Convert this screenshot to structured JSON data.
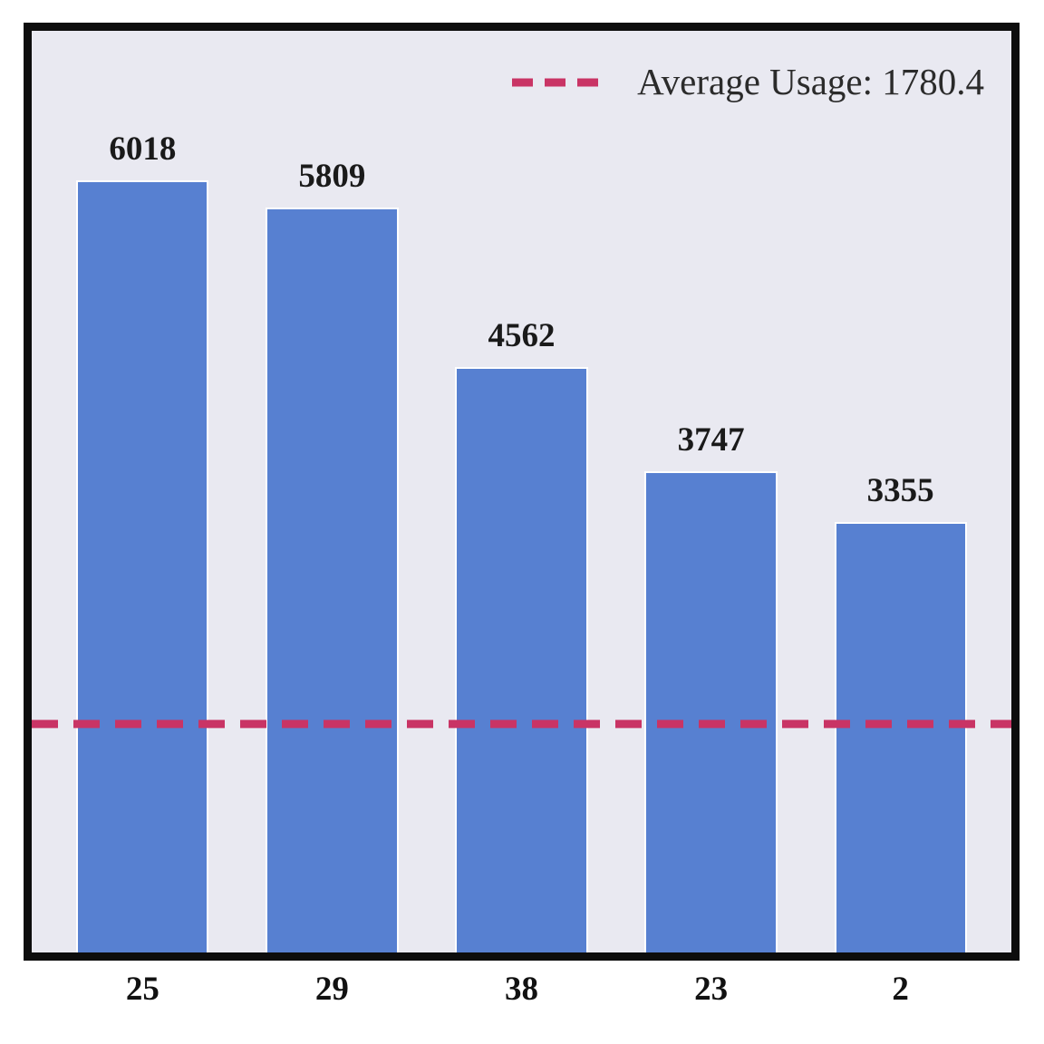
{
  "figure": {
    "background": "#ffffff",
    "plot_background": "#e9e9f1",
    "frame_color": "#0d0d0d"
  },
  "legend": {
    "label": "Average Usage: 1780.4",
    "line_color": "#c93465",
    "line_style": "dashed"
  },
  "chart_data": {
    "type": "bar",
    "categories": [
      "25",
      "29",
      "38",
      "23",
      "2"
    ],
    "values": [
      6018,
      5809,
      4562,
      3747,
      3355
    ],
    "bar_labels": [
      "6018",
      "5809",
      "4562",
      "3747",
      "3355"
    ],
    "series": [
      {
        "name": "Usage",
        "values": [
          6018,
          5809,
          4562,
          3747,
          3355
        ]
      }
    ],
    "average_line": {
      "value": 1780.4,
      "label": "Average Usage: 1780.4",
      "color": "#c93465",
      "style": "dashed"
    },
    "bar_color": "#5780d1",
    "bar_edge_color": "#ffffff",
    "title": "",
    "xlabel": "",
    "ylabel": "",
    "ylim": [
      0,
      7183
    ],
    "grid": false,
    "legend_position": "upper right",
    "value_labels_shown": true
  }
}
